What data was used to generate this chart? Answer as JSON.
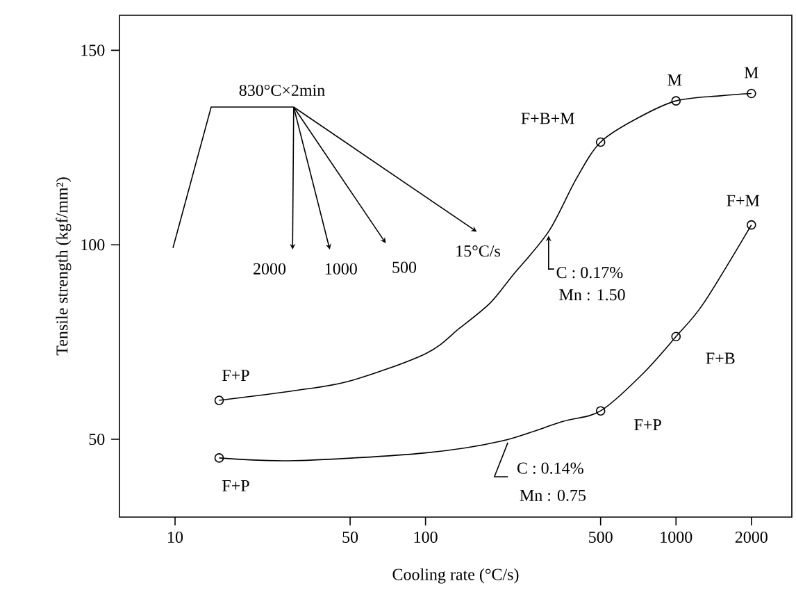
{
  "chart_data": {
    "type": "line",
    "xlabel": "Cooling rate (°C/s)",
    "ylabel": "Tensile strength (kgf/mm²)",
    "log": "x",
    "xlim": [
      6,
      2900
    ],
    "ylim": [
      30,
      159
    ],
    "xticks": [
      10,
      50,
      100,
      500,
      1000,
      2000
    ],
    "yticks": [
      50,
      100,
      150
    ],
    "series": [
      {
        "color": "#000000",
        "marker": "none",
        "x": [
          15,
          30,
          50,
          100,
          137,
          181,
          222,
          310,
          400,
          500,
          700,
          1000,
          1500,
          2000
        ],
        "values": [
          60,
          62.5,
          65,
          72,
          78.6,
          85,
          92,
          103.4,
          117,
          126.4,
          132.5,
          137,
          138.3,
          138.9
        ]
      },
      {
        "type": "scatter",
        "color": "#000000",
        "marker": "circle",
        "x": [
          15,
          500,
          1000,
          2000
        ],
        "values": [
          60,
          126.4,
          137,
          138.9
        ]
      },
      {
        "color": "#000000",
        "marker": "none",
        "x": [
          15,
          30,
          100,
          200,
          350,
          500,
          736,
          1000,
          1290,
          2000
        ],
        "values": [
          45.2,
          44.5,
          46.5,
          49.5,
          54.5,
          57.3,
          66.8,
          76.4,
          85,
          105.1
        ]
      },
      {
        "type": "scatter",
        "color": "#000000",
        "marker": "circle",
        "x": [
          15,
          500,
          1000,
          2000
        ],
        "values": [
          45.2,
          57.3,
          76.4,
          105.1
        ]
      }
    ],
    "annotations": [
      "830°C×2min",
      "2000",
      "1000",
      "500",
      "15°C/s",
      {
        "text": "F+B+M",
        "x": 500,
        "y": 126.4
      },
      {
        "text": "M",
        "x": 1000,
        "y": 137
      },
      {
        "text": "M",
        "x": 2000,
        "y": 138.9
      },
      {
        "text": "F+M",
        "x": 2000,
        "y": 105.1
      },
      {
        "text": "F+B",
        "x": 1000,
        "y": 76.4
      },
      {
        "text": "F+P",
        "x": 500,
        "y": 57.3
      },
      {
        "text": "F+P",
        "x": 15,
        "y": 60
      },
      {
        "text": "F+P",
        "x": 15,
        "y": 45.2
      },
      {
        "text": "C : 0.17%",
        "x": 310,
        "y": 103.4
      },
      {
        "text": "Mn : 1.50",
        "x": 310,
        "y": 103.4
      },
      {
        "text": "C : 0.14%",
        "x": 200,
        "y": 49.5
      },
      {
        "text": "Mn : 0.75",
        "x": 200,
        "y": 49.5
      }
    ]
  }
}
